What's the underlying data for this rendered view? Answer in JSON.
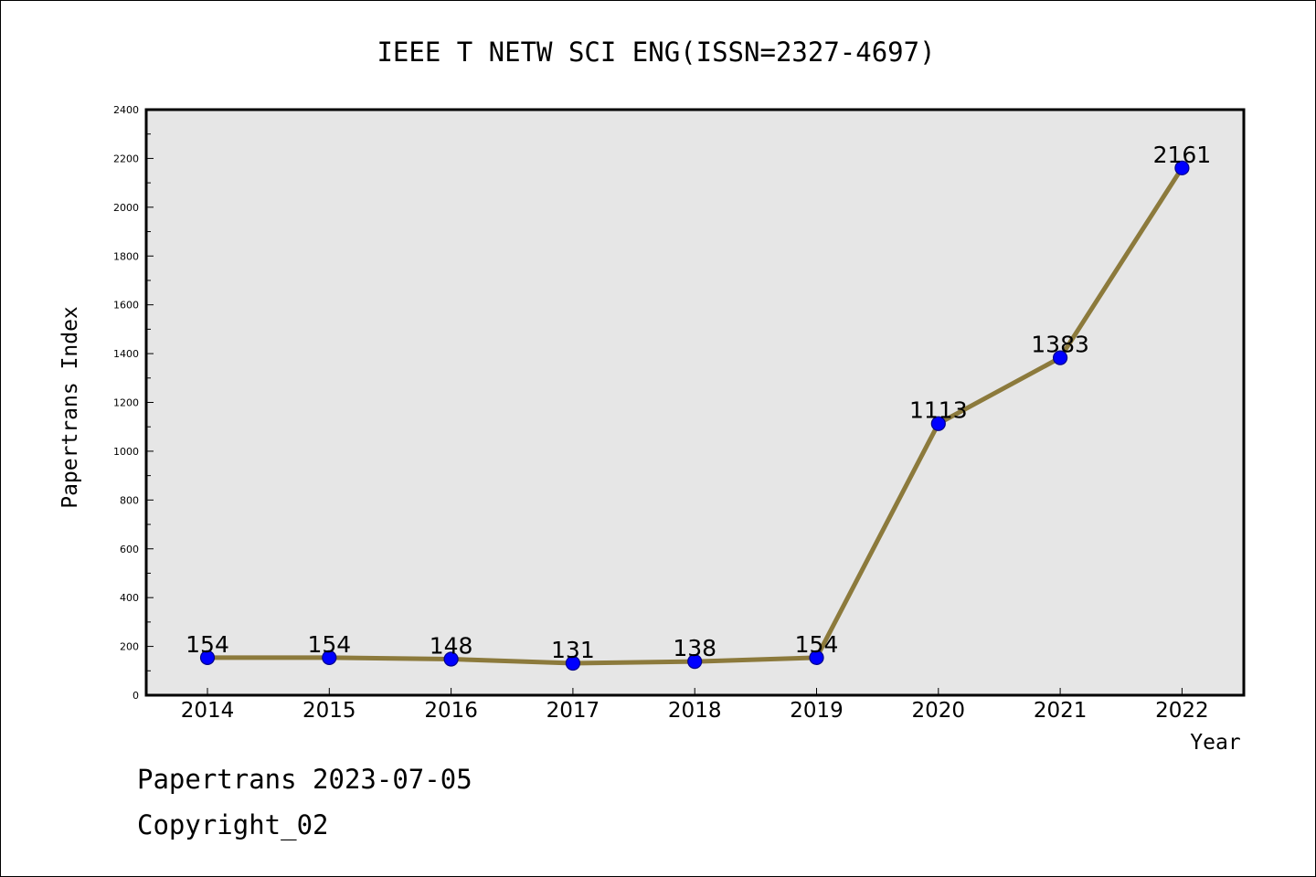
{
  "chart_data": {
    "type": "line",
    "title": "IEEE T NETW SCI ENG(ISSN=2327-4697)",
    "xlabel": "Year",
    "ylabel": "Papertrans Index",
    "categories": [
      "2014",
      "2015",
      "2016",
      "2017",
      "2018",
      "2019",
      "2020",
      "2021",
      "2022"
    ],
    "values": [
      154,
      154,
      148,
      131,
      138,
      154,
      1113,
      1383,
      2161
    ],
    "data_labels": [
      "154",
      "154",
      "148",
      "131",
      "138",
      "154",
      "1113",
      "1383",
      "2161"
    ],
    "ylim": [
      0,
      2400
    ],
    "yticks": [
      0,
      200,
      400,
      600,
      800,
      1000,
      1200,
      1400,
      1600,
      1800,
      2000,
      2200,
      2400
    ],
    "grid": false,
    "colors": {
      "plot_background": "#e6e6e6",
      "line": "#8c7a3c",
      "marker_fill": "#0000ff",
      "marker_edge": "#00008b"
    }
  },
  "footer": {
    "line1": "Papertrans 2023-07-05",
    "line2": "Copyright_02"
  }
}
